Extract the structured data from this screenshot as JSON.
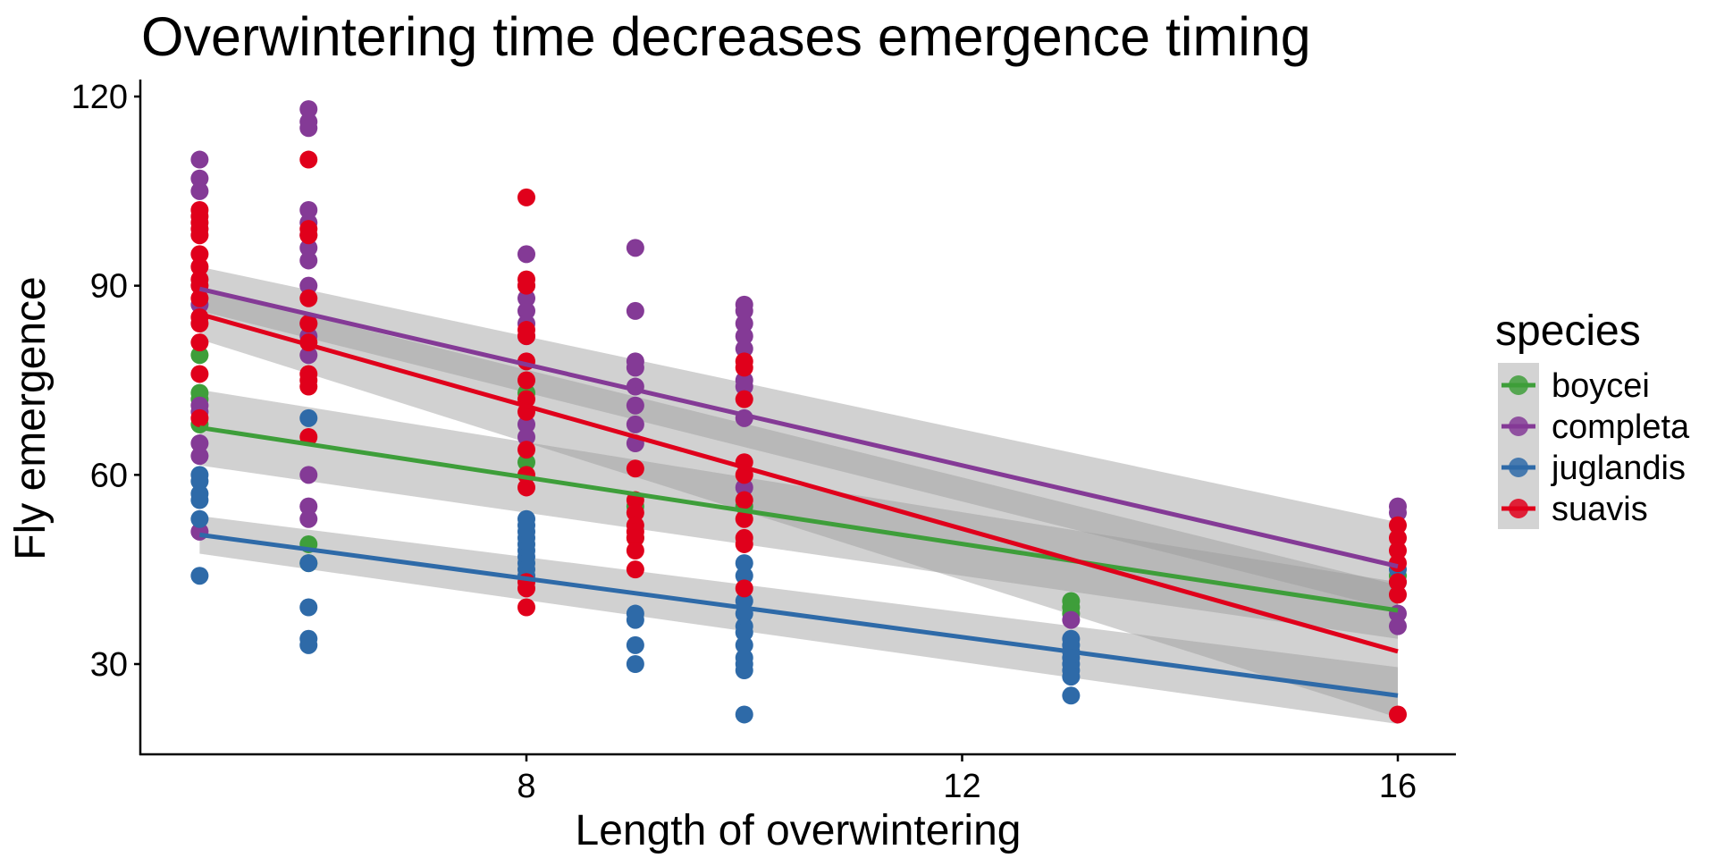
{
  "chart_data": {
    "type": "scatter",
    "title": "Overwintering time decreases emergence timing",
    "xlabel": "Length of overwintering",
    "ylabel": "Fly emergence",
    "xlim": [
      4.5,
      16.5
    ],
    "ylim": [
      16,
      122
    ],
    "xticks": [
      8,
      12,
      16
    ],
    "yticks": [
      30,
      60,
      90,
      120
    ],
    "grid": false,
    "legend": {
      "title": "species",
      "position": "right"
    },
    "series": [
      {
        "name": "boycei",
        "color": "#3e9e3a",
        "points": [
          [
            5,
            79
          ],
          [
            5,
            73
          ],
          [
            5,
            72
          ],
          [
            5,
            68
          ],
          [
            6,
            49
          ],
          [
            6,
            46
          ],
          [
            8,
            73
          ],
          [
            8,
            62
          ],
          [
            9,
            55
          ],
          [
            9,
            50
          ],
          [
            10,
            55
          ],
          [
            13,
            40
          ],
          [
            13,
            39
          ],
          [
            13,
            38
          ],
          [
            16,
            44
          ]
        ],
        "fit": {
          "x": [
            5,
            16
          ],
          "y": [
            67.5,
            38.5
          ],
          "ci_halfwidth": [
            6.0,
            4.5
          ]
        }
      },
      {
        "name": "completa",
        "color": "#843a96",
        "points": [
          [
            5,
            110
          ],
          [
            5,
            107
          ],
          [
            5,
            105
          ],
          [
            5,
            87
          ],
          [
            5,
            71
          ],
          [
            5,
            70
          ],
          [
            5,
            65
          ],
          [
            5,
            63
          ],
          [
            5,
            51
          ],
          [
            6,
            118
          ],
          [
            6,
            116
          ],
          [
            6,
            115
          ],
          [
            6,
            102
          ],
          [
            6,
            100
          ],
          [
            6,
            98
          ],
          [
            6,
            96
          ],
          [
            6,
            94
          ],
          [
            6,
            90
          ],
          [
            6,
            84
          ],
          [
            6,
            82
          ],
          [
            6,
            79
          ],
          [
            6,
            60
          ],
          [
            6,
            55
          ],
          [
            6,
            53
          ],
          [
            8,
            95
          ],
          [
            8,
            90
          ],
          [
            8,
            88
          ],
          [
            8,
            86
          ],
          [
            8,
            84
          ],
          [
            8,
            82
          ],
          [
            8,
            68
          ],
          [
            8,
            66
          ],
          [
            9,
            96
          ],
          [
            9,
            86
          ],
          [
            9,
            78
          ],
          [
            9,
            77
          ],
          [
            9,
            74
          ],
          [
            9,
            71
          ],
          [
            9,
            68
          ],
          [
            9,
            65
          ],
          [
            10,
            87
          ],
          [
            10,
            86
          ],
          [
            10,
            84
          ],
          [
            10,
            82
          ],
          [
            10,
            80
          ],
          [
            10,
            75
          ],
          [
            10,
            74
          ],
          [
            10,
            69
          ],
          [
            10,
            58
          ],
          [
            13,
            37
          ],
          [
            16,
            55
          ],
          [
            16,
            54
          ],
          [
            16,
            38
          ],
          [
            16,
            36
          ]
        ],
        "fit": {
          "x": [
            5,
            16
          ],
          "y": [
            89.5,
            45.5
          ],
          "ci_halfwidth": [
            3.5,
            7.0
          ]
        }
      },
      {
        "name": "juglandis",
        "color": "#2e6aa8",
        "points": [
          [
            5,
            60
          ],
          [
            5,
            59
          ],
          [
            5,
            57
          ],
          [
            5,
            56
          ],
          [
            5,
            53
          ],
          [
            5,
            44
          ],
          [
            6,
            69
          ],
          [
            6,
            46
          ],
          [
            6,
            39
          ],
          [
            6,
            34
          ],
          [
            6,
            33
          ],
          [
            8,
            53
          ],
          [
            8,
            52
          ],
          [
            8,
            51
          ],
          [
            8,
            50
          ],
          [
            8,
            49
          ],
          [
            8,
            48
          ],
          [
            8,
            47
          ],
          [
            8,
            46
          ],
          [
            8,
            45
          ],
          [
            8,
            44
          ],
          [
            9,
            38
          ],
          [
            9,
            37
          ],
          [
            9,
            33
          ],
          [
            9,
            30
          ],
          [
            10,
            46
          ],
          [
            10,
            44
          ],
          [
            10,
            40
          ],
          [
            10,
            38
          ],
          [
            10,
            36
          ],
          [
            10,
            35
          ],
          [
            10,
            33
          ],
          [
            10,
            31
          ],
          [
            10,
            30
          ],
          [
            10,
            29
          ],
          [
            10,
            22
          ],
          [
            13,
            34
          ],
          [
            13,
            33
          ],
          [
            13,
            32
          ],
          [
            13,
            31
          ],
          [
            13,
            30
          ],
          [
            13,
            29
          ],
          [
            13,
            28
          ],
          [
            13,
            25
          ],
          [
            16,
            45
          ],
          [
            16,
            43
          ]
        ],
        "fit": {
          "x": [
            5,
            16
          ],
          "y": [
            50.5,
            25.0
          ],
          "ci_halfwidth": [
            3.0,
            4.5
          ]
        }
      },
      {
        "name": "suavis",
        "color": "#e0001b",
        "points": [
          [
            5,
            102
          ],
          [
            5,
            101
          ],
          [
            5,
            100
          ],
          [
            5,
            99
          ],
          [
            5,
            98
          ],
          [
            5,
            95
          ],
          [
            5,
            93
          ],
          [
            5,
            91
          ],
          [
            5,
            90
          ],
          [
            5,
            88
          ],
          [
            5,
            85
          ],
          [
            5,
            84
          ],
          [
            5,
            81
          ],
          [
            5,
            76
          ],
          [
            5,
            69
          ],
          [
            6,
            110
          ],
          [
            6,
            99
          ],
          [
            6,
            98
          ],
          [
            6,
            88
          ],
          [
            6,
            84
          ],
          [
            6,
            81
          ],
          [
            6,
            76
          ],
          [
            6,
            75
          ],
          [
            6,
            74
          ],
          [
            6,
            66
          ],
          [
            8,
            104
          ],
          [
            8,
            91
          ],
          [
            8,
            90
          ],
          [
            8,
            83
          ],
          [
            8,
            82
          ],
          [
            8,
            78
          ],
          [
            8,
            75
          ],
          [
            8,
            72
          ],
          [
            8,
            70
          ],
          [
            8,
            64
          ],
          [
            8,
            60
          ],
          [
            8,
            58
          ],
          [
            8,
            43
          ],
          [
            8,
            42
          ],
          [
            8,
            39
          ],
          [
            9,
            61
          ],
          [
            9,
            56
          ],
          [
            9,
            54
          ],
          [
            9,
            52
          ],
          [
            9,
            51
          ],
          [
            9,
            50
          ],
          [
            9,
            48
          ],
          [
            9,
            45
          ],
          [
            10,
            78
          ],
          [
            10,
            77
          ],
          [
            10,
            72
          ],
          [
            10,
            62
          ],
          [
            10,
            60
          ],
          [
            10,
            56
          ],
          [
            10,
            53
          ],
          [
            10,
            50
          ],
          [
            10,
            49
          ],
          [
            10,
            42
          ],
          [
            16,
            52
          ],
          [
            16,
            50
          ],
          [
            16,
            48
          ],
          [
            16,
            46
          ],
          [
            16,
            43
          ],
          [
            16,
            41
          ],
          [
            16,
            22
          ]
        ],
        "fit": {
          "x": [
            5,
            16
          ],
          "y": [
            85.5,
            32.0
          ],
          "ci_halfwidth": [
            4.0,
            10.5
          ]
        }
      }
    ]
  }
}
